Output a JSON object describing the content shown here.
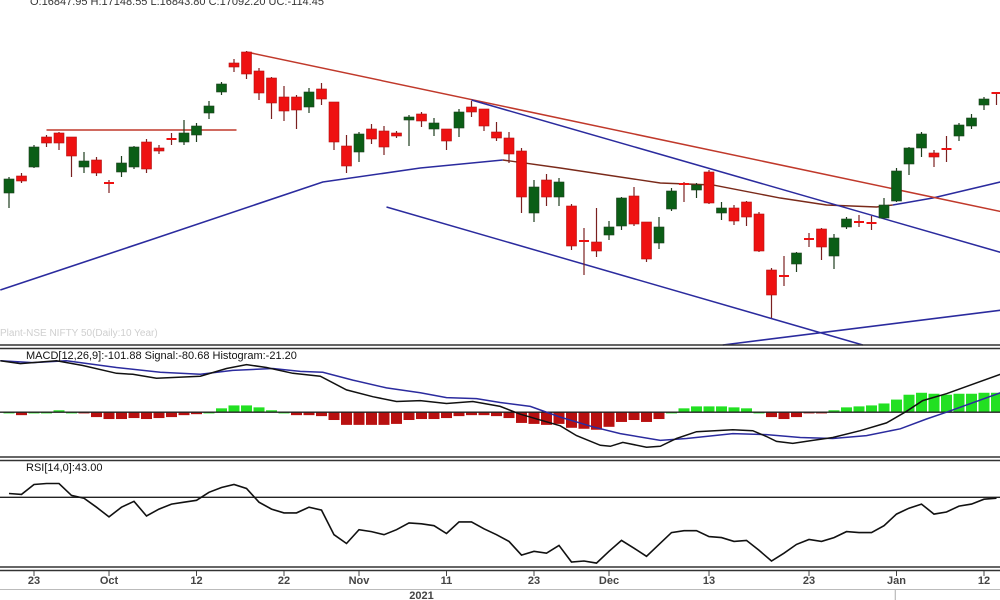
{
  "header": {
    "ohlc_text": "O:16847.95  H:17148.55  L:16843.80  C:17092.20  UC:-114.45"
  },
  "watermark": "Plant-NSE NIFTY 50(Daily:10 Year)",
  "colors": {
    "up": "#0b5e16",
    "down": "#ee1111",
    "trend_red": "#c0392b",
    "trend_blue": "#2b2b9e",
    "ma_blue": "#2b2b9e",
    "ma_brown": "#7a2a1a",
    "macd": "#111111",
    "signal": "#2b2b9e",
    "hist_up": "#22e022",
    "hist_down": "#b81010"
  },
  "chart_data": [
    {
      "type": "candlestick",
      "ylim": [
        16240,
        19000
      ],
      "grid": false,
      "candles": [
        [
          17456,
          17584,
          17336,
          17568
        ],
        [
          17592,
          17616,
          17536,
          17552
        ],
        [
          17664,
          17840,
          17656,
          17824
        ],
        [
          17904,
          17920,
          17824,
          17856
        ],
        [
          17936,
          17944,
          17800,
          17856
        ],
        [
          17904,
          17904,
          17584,
          17752
        ],
        [
          17664,
          17784,
          17616,
          17712
        ],
        [
          17720,
          17744,
          17592,
          17616
        ],
        [
          17536,
          17560,
          17456,
          17536
        ],
        [
          17624,
          17752,
          17584,
          17696
        ],
        [
          17664,
          17832,
          17648,
          17824
        ],
        [
          17864,
          17888,
          17616,
          17648
        ],
        [
          17816,
          17840,
          17768,
          17792
        ],
        [
          17888,
          17936,
          17840,
          17888
        ],
        [
          17864,
          18040,
          17840,
          17936
        ],
        [
          17920,
          18016,
          17864,
          17992
        ],
        [
          18096,
          18192,
          18048,
          18152
        ],
        [
          18264,
          18344,
          18240,
          18328
        ],
        [
          18496,
          18528,
          18424,
          18464
        ],
        [
          18584,
          18592,
          18368,
          18408
        ],
        [
          18432,
          18456,
          18200,
          18256
        ],
        [
          18376,
          18384,
          18048,
          18176
        ],
        [
          18224,
          18312,
          18032,
          18112
        ],
        [
          18224,
          18240,
          17968,
          18120
        ],
        [
          18144,
          18296,
          18096,
          18264
        ],
        [
          18288,
          18336,
          18160,
          18208
        ],
        [
          18184,
          18184,
          17800,
          17864
        ],
        [
          17832,
          17920,
          17616,
          17672
        ],
        [
          17784,
          17944,
          17704,
          17928
        ],
        [
          17968,
          18008,
          17848,
          17888
        ],
        [
          17952,
          17992,
          17760,
          17824
        ],
        [
          17936,
          17952,
          17896,
          17912
        ],
        [
          18040,
          18080,
          17832,
          18064
        ],
        [
          18088,
          18104,
          17984,
          18032
        ],
        [
          17968,
          18056,
          17912,
          18016
        ],
        [
          17968,
          17968,
          17800,
          17872
        ],
        [
          17976,
          18128,
          17904,
          18104
        ],
        [
          18144,
          18192,
          18064,
          18104
        ],
        [
          18128,
          18128,
          17952,
          17992
        ],
        [
          17944,
          18024,
          17872,
          17896
        ],
        [
          17896,
          17944,
          17696,
          17768
        ],
        [
          17792,
          17816,
          17296,
          17424
        ],
        [
          17296,
          17560,
          17224,
          17504
        ],
        [
          17560,
          17608,
          17352,
          17424
        ],
        [
          17424,
          17576,
          17352,
          17544
        ],
        [
          17352,
          17368,
          17000,
          17032
        ],
        [
          17072,
          17176,
          16800,
          17072
        ],
        [
          17064,
          17336,
          16944,
          16992
        ],
        [
          17120,
          17232,
          17080,
          17184
        ],
        [
          17192,
          17424,
          17160,
          17416
        ],
        [
          17432,
          17504,
          17192,
          17208
        ],
        [
          17224,
          17224,
          16904,
          16928
        ],
        [
          17056,
          17264,
          17008,
          17184
        ],
        [
          17328,
          17496,
          17312,
          17472
        ],
        [
          17528,
          17544,
          17384,
          17528
        ],
        [
          17480,
          17536,
          17416,
          17520
        ],
        [
          17624,
          17640,
          17368,
          17376
        ],
        [
          17296,
          17384,
          17240,
          17336
        ],
        [
          17336,
          17360,
          17200,
          17232
        ],
        [
          17384,
          17392,
          17192,
          17264
        ],
        [
          17288,
          17304,
          16984,
          16992
        ],
        [
          16840,
          16856,
          16456,
          16640
        ],
        [
          16792,
          16952,
          16712,
          16792
        ],
        [
          16888,
          16984,
          16824,
          16976
        ],
        [
          17088,
          17136,
          17024,
          17088
        ],
        [
          17168,
          17176,
          16920,
          17024
        ],
        [
          16952,
          17128,
          16848,
          17096
        ],
        [
          17184,
          17264,
          17168,
          17248
        ],
        [
          17224,
          17280,
          17184,
          17224
        ],
        [
          17216,
          17272,
          17160,
          17216
        ],
        [
          17256,
          17416,
          17248,
          17360
        ],
        [
          17392,
          17656,
          17384,
          17632
        ],
        [
          17688,
          17824,
          17600,
          17816
        ],
        [
          17816,
          17944,
          17744,
          17928
        ],
        [
          17776,
          17800,
          17664,
          17744
        ],
        [
          17808,
          17912,
          17704,
          17808
        ],
        [
          17912,
          18016,
          17872,
          18000
        ],
        [
          17992,
          18088,
          17968,
          18056
        ],
        [
          18160,
          18224,
          18120,
          18208
        ],
        [
          18256,
          18264,
          18160,
          18256
        ]
      ],
      "moving_average": [
        [
          -0.7,
          16680
        ],
        [
          11.3,
          17080
        ],
        [
          25.1,
          17544
        ],
        [
          32.9,
          17656
        ],
        [
          39.5,
          17720
        ],
        [
          44.1,
          17656
        ],
        [
          52.1,
          17536
        ],
        [
          56.3,
          17520
        ],
        [
          61.7,
          17416
        ],
        [
          65.4,
          17360
        ],
        [
          69.4,
          17344
        ],
        [
          70.7,
          17360
        ],
        [
          73.9,
          17416
        ],
        [
          79.3,
          17544
        ]
      ],
      "long_moving_average": [
        [
          57.1,
          16240
        ],
        [
          79.5,
          16520
        ]
      ],
      "trendlines": [
        {
          "color": "red",
          "points": [
            [
              3,
              17960
            ],
            [
              18.2,
              17960
            ]
          ]
        },
        {
          "color": "red",
          "points": [
            [
              19,
              18584
            ],
            [
              79.5,
              17304
            ]
          ]
        },
        {
          "color": "blue",
          "points": [
            [
              37,
              18200
            ],
            [
              79.5,
              16976
            ]
          ]
        },
        {
          "color": "blue",
          "points": [
            [
              30.2,
              17344
            ],
            [
              68.3,
              16240
            ]
          ]
        }
      ]
    },
    {
      "type": "macd",
      "label": "MACD[12,26,9]:-101.88 Signal:-80.68 Histogram:-21.20",
      "ylim": [
        -360,
        520
      ],
      "macd": [
        [
          -0.7,
          424
        ],
        [
          0.9,
          400
        ],
        [
          3.8,
          424
        ],
        [
          5.9,
          384
        ],
        [
          8.6,
          320
        ],
        [
          9.9,
          312
        ],
        [
          11.8,
          280
        ],
        [
          15.3,
          296
        ],
        [
          17.4,
          360
        ],
        [
          19.0,
          392
        ],
        [
          20.6,
          368
        ],
        [
          22.7,
          320
        ],
        [
          24.9,
          296
        ],
        [
          27.0,
          184
        ],
        [
          29.1,
          128
        ],
        [
          31.0,
          88
        ],
        [
          32.9,
          96
        ],
        [
          35.0,
          72
        ],
        [
          37.1,
          88
        ],
        [
          39.3,
          48
        ],
        [
          40.9,
          -16
        ],
        [
          44.1,
          -112
        ],
        [
          45.4,
          -192
        ],
        [
          47.3,
          -272
        ],
        [
          48.1,
          -280
        ],
        [
          49.1,
          -248
        ],
        [
          51.0,
          -288
        ],
        [
          52.1,
          -280
        ],
        [
          53.4,
          -216
        ],
        [
          55.0,
          -160
        ],
        [
          57.9,
          -144
        ],
        [
          59.5,
          -152
        ],
        [
          60.6,
          -200
        ],
        [
          61.4,
          -240
        ],
        [
          62.7,
          -256
        ],
        [
          64.3,
          -232
        ],
        [
          65.9,
          -208
        ],
        [
          68.1,
          -152
        ],
        [
          70.2,
          -88
        ],
        [
          71.8,
          8
        ],
        [
          73.1,
          96
        ],
        [
          75.0,
          152
        ],
        [
          79.3,
          312
        ]
      ],
      "signal": [
        [
          -0.7,
          424
        ],
        [
          1.9,
          408
        ],
        [
          4.6,
          424
        ],
        [
          8.6,
          368
        ],
        [
          12.1,
          328
        ],
        [
          15.3,
          312
        ],
        [
          17.9,
          344
        ],
        [
          21.1,
          360
        ],
        [
          23.3,
          336
        ],
        [
          25.1,
          328
        ],
        [
          27.5,
          264
        ],
        [
          30.2,
          200
        ],
        [
          32.9,
          160
        ],
        [
          35.0,
          120
        ],
        [
          37.4,
          112
        ],
        [
          39.3,
          80
        ],
        [
          41.7,
          48
        ],
        [
          44.1,
          -40
        ],
        [
          46.7,
          -120
        ],
        [
          48.9,
          -176
        ],
        [
          52.1,
          -232
        ],
        [
          54.2,
          -216
        ],
        [
          57.9,
          -176
        ],
        [
          60.6,
          -184
        ],
        [
          63.3,
          -208
        ],
        [
          65.9,
          -216
        ],
        [
          68.6,
          -192
        ],
        [
          71.3,
          -136
        ],
        [
          73.4,
          -56
        ],
        [
          75.0,
          0
        ],
        [
          79.3,
          160
        ]
      ],
      "histogram": [
        0,
        -24,
        0,
        0,
        16,
        0,
        -8,
        -40,
        -56,
        -56,
        -48,
        -56,
        -48,
        -40,
        -24,
        -16,
        0,
        32,
        56,
        56,
        40,
        16,
        0,
        -24,
        -24,
        -32,
        -64,
        -104,
        -104,
        -104,
        -104,
        -96,
        -64,
        -56,
        -56,
        -48,
        -32,
        -24,
        -24,
        -32,
        -48,
        -88,
        -96,
        -104,
        -96,
        -128,
        -136,
        -144,
        -120,
        -80,
        -64,
        -80,
        -56,
        0,
        32,
        48,
        48,
        48,
        40,
        32,
        0,
        -40,
        -56,
        -40,
        -8,
        -8,
        16,
        40,
        48,
        56,
        72,
        104,
        144,
        160,
        152,
        144,
        152,
        152,
        160,
        160
      ]
    },
    {
      "type": "line",
      "label": "RSI[14,0]:43.00",
      "ylim": [
        25,
        80
      ],
      "reference_line": 61,
      "values": [
        63.0,
        62.5,
        67.7,
        68.2,
        68.2,
        62.0,
        60.5,
        55.8,
        50.7,
        55.8,
        58.9,
        51.2,
        54.8,
        57.4,
        58.4,
        59.4,
        63.6,
        66.1,
        67.7,
        65.6,
        58.4,
        54.8,
        52.8,
        52.8,
        55.8,
        54.3,
        41.4,
        36.8,
        44.0,
        43.0,
        41.4,
        44.0,
        47.6,
        47.1,
        46.1,
        42.0,
        48.1,
        48.1,
        44.5,
        41.4,
        37.9,
        30.7,
        32.7,
        31.7,
        35.8,
        27.1,
        27.6,
        26.5,
        32.7,
        38.4,
        34.3,
        30.1,
        36.3,
        42.5,
        43.5,
        43.5,
        40.4,
        39.9,
        37.9,
        38.4,
        33.2,
        27.6,
        31.7,
        36.3,
        38.9,
        37.9,
        39.9,
        43.0,
        42.5,
        42.5,
        46.1,
        52.2,
        55.3,
        57.4,
        52.2,
        53.3,
        56.4,
        57.4,
        60.0,
        60.5
      ]
    }
  ],
  "x_axis": {
    "ticks": [
      {
        "label": "23",
        "index": 2
      },
      {
        "label": "Oct",
        "index": 8
      },
      {
        "label": "12",
        "index": 15
      },
      {
        "label": "22",
        "index": 22
      },
      {
        "label": "Nov",
        "index": 28
      },
      {
        "label": "11",
        "index": 35
      },
      {
        "label": "23",
        "index": 42
      },
      {
        "label": "Dec",
        "index": 48
      },
      {
        "label": "13",
        "index": 56
      },
      {
        "label": "23",
        "index": 64
      },
      {
        "label": "Jan",
        "index": 71
      },
      {
        "label": "12",
        "index": 78
      }
    ],
    "year_label": "2021",
    "year_label_index": 33,
    "year_divider_index": 70.9
  }
}
